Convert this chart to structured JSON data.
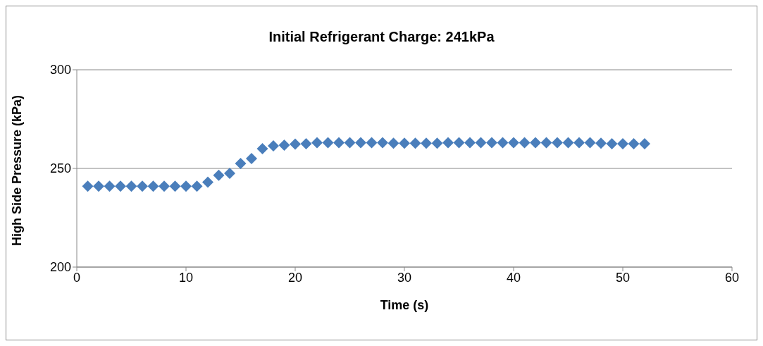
{
  "chart_data": {
    "type": "scatter",
    "title": "Initial Refrigerant Charge: 241kPa",
    "xlabel": "Time (s)",
    "ylabel": "High Side Pressure (kPa)",
    "x": [
      1,
      2,
      3,
      4,
      5,
      6,
      7,
      8,
      9,
      10,
      11,
      12,
      13,
      14,
      15,
      16,
      17,
      18,
      19,
      20,
      21,
      22,
      23,
      24,
      25,
      26,
      27,
      28,
      29,
      30,
      31,
      32,
      33,
      34,
      35,
      36,
      37,
      38,
      39,
      40,
      41,
      42,
      43,
      44,
      45,
      46,
      47,
      48,
      49,
      50,
      51,
      52
    ],
    "series": [
      {
        "color": "#4a7ebb",
        "values": [
          241,
          241,
          241,
          241,
          241,
          241,
          241,
          241,
          241,
          241,
          241,
          243,
          246.5,
          247.5,
          252.5,
          255,
          260,
          261.4,
          261.8,
          262.3,
          262.5,
          263,
          263,
          263,
          263,
          263,
          263,
          263,
          262.8,
          262.8,
          262.8,
          262.8,
          262.8,
          263,
          263,
          263,
          263,
          263,
          263,
          263,
          263,
          263,
          263,
          263,
          263,
          263,
          263,
          262.8,
          262.5,
          262.5,
          262.5,
          262.5
        ]
      }
    ],
    "xlim": [
      0,
      60
    ],
    "xticks": [
      0,
      10,
      20,
      30,
      40,
      50,
      60
    ],
    "ylim": [
      200,
      300
    ],
    "yticks": [
      200,
      250,
      300
    ],
    "grid": "y",
    "legend": false,
    "marker": "diamond"
  }
}
